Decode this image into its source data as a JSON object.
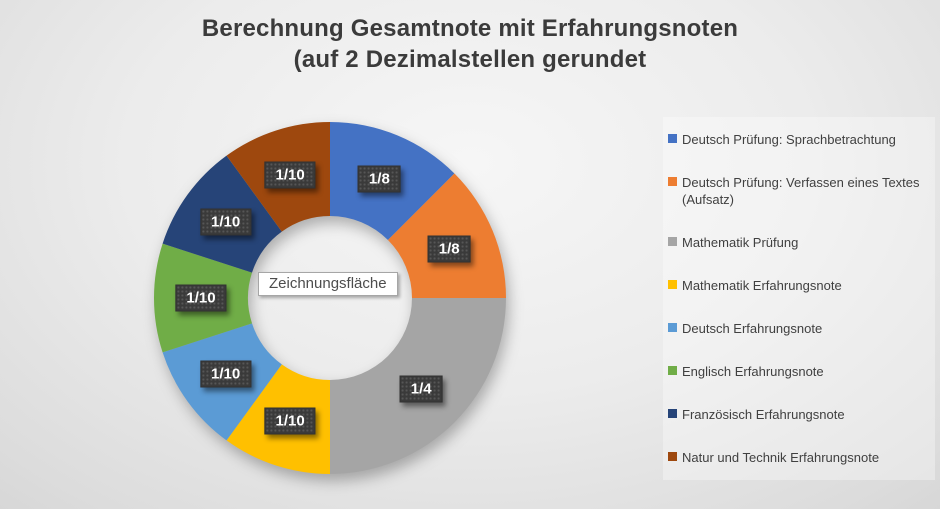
{
  "title": {
    "line1": "Berechnung Gesamtnote mit Erfahrungsnoten",
    "line2": "(auf 2 Dezimalstellen gerundet"
  },
  "tooltip": {
    "text": "Zeichnungsfläche"
  },
  "chart_data": {
    "type": "pie",
    "subtype": "doughnut",
    "title": "Berechnung Gesamtnote mit Erfahrungsnoten (auf 2 Dezimalstellen gerundet",
    "legend_position": "right",
    "direction": "clockwise",
    "start_angle_deg": 0,
    "hole_ratio": 0.47,
    "total": 1.0,
    "segments": [
      {
        "name": "Deutsch Prüfung: Sprachbetrachtung",
        "legend_lines": [
          "Deutsch Prüfung: Sprachbetrachtung"
        ],
        "value": 0.125,
        "label": "1/8",
        "color": "#4472C4"
      },
      {
        "name": "Deutsch Prüfung: Verfassen eines Textes (Aufsatz)",
        "legend_lines": [
          "Deutsch Prüfung: Verfassen eines Textes",
          "(Aufsatz)"
        ],
        "value": 0.125,
        "label": "1/8",
        "color": "#ED7D31"
      },
      {
        "name": "Mathematik Prüfung",
        "legend_lines": [
          "Mathematik Prüfung"
        ],
        "value": 0.25,
        "label": "1/4",
        "color": "#A5A5A5"
      },
      {
        "name": "Mathematik Erfahrungsnote",
        "legend_lines": [
          "Mathematik Erfahrungsnote"
        ],
        "value": 0.1,
        "label": "1/10",
        "color": "#FFC000"
      },
      {
        "name": "Deutsch Erfahrungsnote",
        "legend_lines": [
          "Deutsch Erfahrungsnote"
        ],
        "value": 0.1,
        "label": "1/10",
        "color": "#5B9BD5"
      },
      {
        "name": "Englisch Erfahrungsnote",
        "legend_lines": [
          "Englisch Erfahrungsnote"
        ],
        "value": 0.1,
        "label": "1/10",
        "color": "#70AD47"
      },
      {
        "name": "Französisch Erfahrungsnote",
        "legend_lines": [
          "Französisch Erfahrungsnote"
        ],
        "value": 0.1,
        "label": "1/10",
        "color": "#264478"
      },
      {
        "name": "Natur und Technik Erfahrungsnote",
        "legend_lines": [
          "Natur und Technik Erfahrungsnote"
        ],
        "value": 0.1,
        "label": "1/10",
        "color": "#9E480E"
      }
    ],
    "colors": {
      "title_text": "#3B3B3B",
      "legend_text": "#404040",
      "data_label_background": "#3A3A3A",
      "data_label_text": "#FFFFFF"
    }
  }
}
